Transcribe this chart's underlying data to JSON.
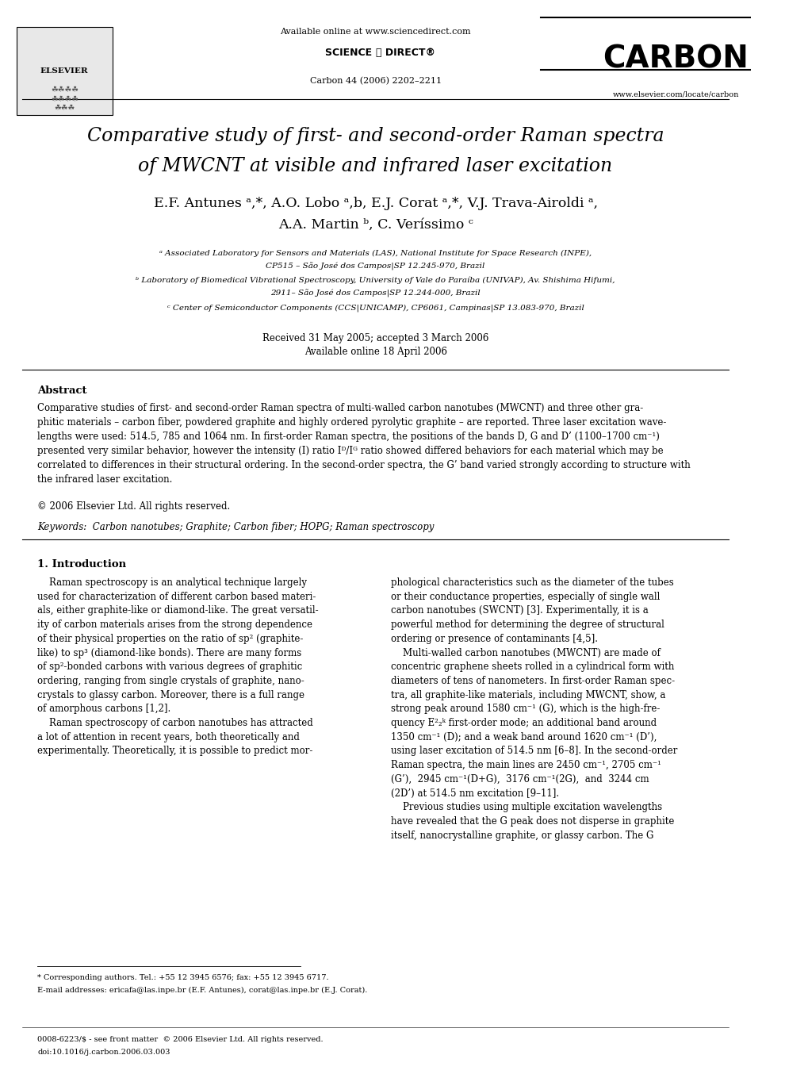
{
  "page_width": 10.2,
  "page_height": 13.59,
  "background_color": "#ffffff",
  "header": {
    "available_online": "Available online at www.sciencedirect.com",
    "sciencedirect_logo": "SCIENCE @ DIRECT®",
    "journal_name": "CARBON",
    "journal_issue": "Carbon 44 (2006) 2202–2211",
    "journal_url": "www.elsevier.com/locate/carbon"
  },
  "title_line1": "Comparative study of first- and second-order Raman spectra",
  "title_line2": "of MWCNT at visible and infrared laser excitation",
  "authors_line1": "E.F. Antunes  °,* A.O. Lobo  °,b  E.J. Corat  °,*  V.J. Trava-Airoldi  °,",
  "authors_line1_plain": "E.F. Antunes",
  "authors_line2": "A.A. Martin ⁻, C. Veríssimo ᶜ",
  "affiliation_a": "ª Associated Laboratory for Sensors and Materials (LAS), National Institute for Space Research (INPE),",
  "affiliation_a2": "CP515 – São José dos Campos|SP 12.245-970, Brazil",
  "affiliation_b": "ᵇ Laboratory of Biomedical Vibrational Spectroscopy, University of Vale do Paraíba (UNIVAP), Av. Shishima Hifumi,",
  "affiliation_b2": "2911– São José dos Campos|SP 12.244-000, Brazil",
  "affiliation_c": "ᶜ Center of Semiconductor Components (CCS|UNICAMP), CP6061, Campinas|SP 13.083-970, Brazil",
  "received": "Received 31 May 2005; accepted 3 March 2006",
  "available_online_date": "Available online 18 April 2006",
  "abstract_title": "Abstract",
  "abstract_text": "Comparative studies of first- and second-order Raman spectra of multi-walled carbon nanotubes (MWCNT) and three other graphitic materials – carbon fiber, powdered graphite and highly ordered pyrolytic graphite – are reported. Three laser excitation wavelengths were used: 514.5, 785 and 1064 nm. In first-order Raman spectra, the positions of the bands D, G and D’ (1100–1700 cm⁻¹) presented very similar behavior, however the intensity (I) ratio I₂/Iᵂ ratio showed differed behaviors for each material which may be correlated to differences in their structural ordering. In the second-order spectra, the G’ band varied strongly according to structure with the infrared laser excitation.",
  "copyright": "© 2006 Elsevier Ltd. All rights reserved.",
  "keywords": "Keywords:  Carbon nanotubes; Graphite; Carbon fiber; HOPG; Raman spectroscopy",
  "section1_title": "1. Introduction",
  "section1_col1_text": "Raman spectroscopy is an analytical technique largely used for characterization of different carbon based materials, either graphite-like or diamond-like. The great versatility of carbon materials arises from the strong dependence of their physical properties on the ratio of sp² (graphitelike) to sp³ (diamond-like bonds). There are many forms of sp²-bonded carbons with various degrees of graphitic ordering, ranging from single crystals of graphite, nanocrystals to glassy carbon. Moreover, there is a full range of amorphous carbons [1,2].\n    Raman spectroscopy of carbon nanotubes has attracted a lot of attention in recent years, both theoretically and experimentally. Theoretically, it is possible to predict mor-",
  "section1_col2_text": "phological characteristics such as the diameter of the tubes or their conductance properties, especially of single wall carbon nanotubes (SWCNT) [3]. Experimentally, it is a powerful method for determining the degree of structural ordering or presence of contaminants [4,5].\n    Multi-walled carbon nanotubes (MWCNT) are made of concentric graphene sheets rolled in a cylindrical form with diameters of tens of nanometers. In first-order Raman spectra, all graphite-like materials, including MWCNT, show, a strong peak around 1580 cm⁻¹ (G), which is the high-frequency E₂ᵍ first-order mode; an additional band around 1350 cm⁻¹ (D); and a weak band around 1620 cm⁻¹ (D’), using laser excitation of 514.5 nm [6–8]. In the second-order Raman spectra, the main lines are 2450 cm⁻¹, 2705 cm⁻¹ (G’), 2945 cm⁻¹(D+G), 3176 cm⁻¹(2G), and 3244 cm (2D’) at 514.5 nm excitation [9–11].\n    Previous studies using multiple excitation wavelengths have revealed that the G peak does not disperse in graphite itself, nanocrystalline graphite, or glassy carbon. The G",
  "footnote_star": "* Corresponding authors. Tel.: +55 12 3945 6576; fax: +55 12 3945 6717.",
  "footnote_email": "E-mail addresses: ericafa@las.inpe.br (E.F. Antunes), corat@las.inpe.br (E.J. Corat).",
  "footer_issn": "0008-6223/$ - see front matter  © 2006 Elsevier Ltd. All rights reserved.",
  "footer_doi": "doi:10.1016/j.carbon.2006.03.003"
}
